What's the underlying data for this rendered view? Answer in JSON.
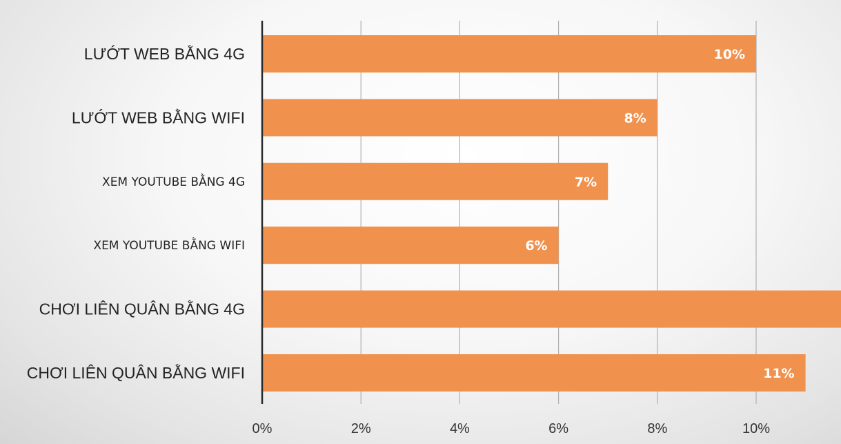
{
  "colors": {
    "bar": "#f0924e",
    "grid": "#b0b0b0",
    "axis": "#2a2a2a"
  },
  "chart_data": {
    "type": "bar",
    "orientation": "horizontal",
    "categories": [
      "LƯỚT WEB BẰNG 4G",
      "LƯỚT WEB BẰNG WIFI",
      "XEM YOUTUBE BẰNG 4G",
      "XEM YOUTUBE BẰNG WIFI",
      "CHƠI LIÊN QUÂN BẰNG 4G",
      "CHƠI LIÊN QUÂN BẰNG WIFI"
    ],
    "values": [
      10,
      8,
      7,
      6,
      12,
      11
    ],
    "data_labels": [
      "10%",
      "8%",
      "7%",
      "6%",
      "",
      "11%"
    ],
    "x_ticks": [
      0,
      2,
      4,
      6,
      8,
      10
    ],
    "x_tick_labels": [
      "0%",
      "2%",
      "4%",
      "6%",
      "8%",
      "10%"
    ],
    "xlim": [
      0,
      11.65
    ],
    "grid": true,
    "title": "",
    "xlabel": "",
    "ylabel": ""
  }
}
